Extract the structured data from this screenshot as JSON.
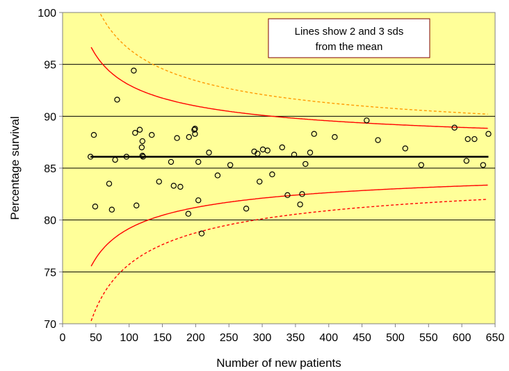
{
  "chart_data": {
    "type": "scatter",
    "xlabel": "Number of new patients",
    "ylabel": "Percentage survival",
    "xlim": [
      0,
      650
    ],
    "ylim": [
      70,
      100
    ],
    "x_ticks": [
      0,
      50,
      100,
      150,
      200,
      250,
      300,
      350,
      400,
      450,
      500,
      550,
      600,
      650
    ],
    "y_ticks": [
      70,
      75,
      80,
      85,
      90,
      95,
      100
    ],
    "x_tick_labels": [
      "0",
      "50",
      "100",
      "150",
      "200",
      "250",
      "300",
      "350",
      "400",
      "450",
      "500",
      "550",
      "600",
      "650"
    ],
    "y_tick_labels": [
      "70",
      "75",
      "80",
      "85",
      "90",
      "95",
      "100"
    ],
    "grid": "horizontal",
    "annotation": {
      "lines": [
        "Lines show 2 and 3 sds",
        "from the mean"
      ],
      "position": "top-right"
    },
    "mean": 86.1,
    "limit_curves": [
      {
        "type": "upper-3sd",
        "style": "dashed",
        "color": "#ff9900",
        "x_range": [
          43,
          640
        ]
      },
      {
        "type": "upper-2sd",
        "style": "solid",
        "color": "#ff0000",
        "x_range": [
          43,
          640
        ]
      },
      {
        "type": "lower-2sd",
        "style": "solid",
        "color": "#ff0000",
        "x_range": [
          43,
          640
        ]
      },
      {
        "type": "lower-3sd",
        "style": "dashed",
        "color": "#ff0000",
        "x_range": [
          43,
          640
        ]
      }
    ],
    "points": [
      {
        "x": 42,
        "y": 86.1
      },
      {
        "x": 47,
        "y": 88.2
      },
      {
        "x": 49,
        "y": 81.3
      },
      {
        "x": 70,
        "y": 83.5
      },
      {
        "x": 74,
        "y": 81.0
      },
      {
        "x": 79,
        "y": 85.8
      },
      {
        "x": 82,
        "y": 91.6
      },
      {
        "x": 96,
        "y": 86.1
      },
      {
        "x": 107,
        "y": 94.4
      },
      {
        "x": 109,
        "y": 88.4
      },
      {
        "x": 111,
        "y": 81.4
      },
      {
        "x": 116,
        "y": 88.7
      },
      {
        "x": 119,
        "y": 87.0
      },
      {
        "x": 120,
        "y": 86.2
      },
      {
        "x": 120,
        "y": 87.6
      },
      {
        "x": 121,
        "y": 86.1
      },
      {
        "x": 134,
        "y": 88.2
      },
      {
        "x": 145,
        "y": 83.7
      },
      {
        "x": 163,
        "y": 85.6
      },
      {
        "x": 167,
        "y": 83.3
      },
      {
        "x": 172,
        "y": 87.9
      },
      {
        "x": 177,
        "y": 83.2
      },
      {
        "x": 189,
        "y": 80.6
      },
      {
        "x": 190,
        "y": 88.0
      },
      {
        "x": 198,
        "y": 88.7
      },
      {
        "x": 199,
        "y": 88.3
      },
      {
        "x": 199,
        "y": 88.8
      },
      {
        "x": 204,
        "y": 85.6
      },
      {
        "x": 204,
        "y": 81.9
      },
      {
        "x": 209,
        "y": 78.7
      },
      {
        "x": 220,
        "y": 86.5
      },
      {
        "x": 233,
        "y": 84.3
      },
      {
        "x": 252,
        "y": 85.3
      },
      {
        "x": 276,
        "y": 81.1
      },
      {
        "x": 288,
        "y": 86.6
      },
      {
        "x": 293,
        "y": 86.4
      },
      {
        "x": 296,
        "y": 83.7
      },
      {
        "x": 301,
        "y": 86.8
      },
      {
        "x": 308,
        "y": 86.7
      },
      {
        "x": 315,
        "y": 84.4
      },
      {
        "x": 330,
        "y": 87.0
      },
      {
        "x": 338,
        "y": 82.4
      },
      {
        "x": 348,
        "y": 86.3
      },
      {
        "x": 357,
        "y": 81.5
      },
      {
        "x": 360,
        "y": 82.5
      },
      {
        "x": 365,
        "y": 85.4
      },
      {
        "x": 372,
        "y": 86.5
      },
      {
        "x": 378,
        "y": 88.3
      },
      {
        "x": 409,
        "y": 88.0
      },
      {
        "x": 457,
        "y": 89.6
      },
      {
        "x": 474,
        "y": 87.7
      },
      {
        "x": 515,
        "y": 86.9
      },
      {
        "x": 539,
        "y": 85.3
      },
      {
        "x": 589,
        "y": 88.9
      },
      {
        "x": 607,
        "y": 85.7
      },
      {
        "x": 609,
        "y": 87.8
      },
      {
        "x": 619,
        "y": 87.8
      },
      {
        "x": 632,
        "y": 85.3
      },
      {
        "x": 640,
        "y": 88.3
      }
    ]
  }
}
